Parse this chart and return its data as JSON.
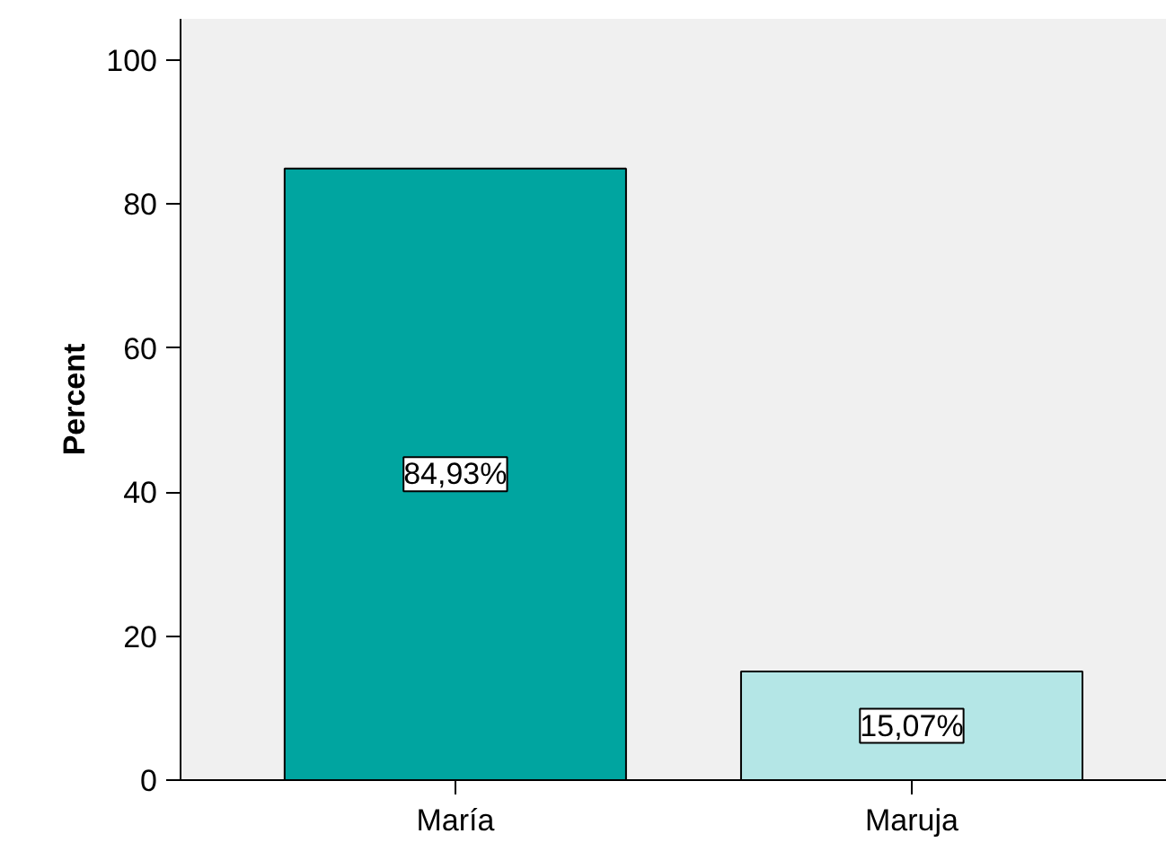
{
  "chart_data": {
    "type": "bar",
    "ylabel": "Percent",
    "categories": [
      "María",
      "Maruja"
    ],
    "values": [
      84.93,
      15.07
    ],
    "colors": [
      "#00a5a0",
      "#b4e6e6"
    ],
    "value_labels": [
      "84,93%",
      "15,07%"
    ],
    "ylim": [
      0,
      105.7
    ],
    "yticks": [
      0,
      20,
      40,
      60,
      80,
      100
    ],
    "grid": false
  }
}
